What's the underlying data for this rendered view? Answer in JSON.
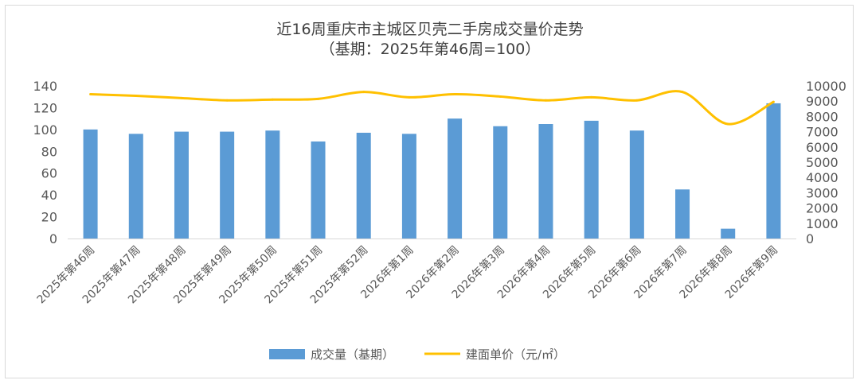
{
  "chart_data": {
    "type": "bar+line",
    "title": "近16周重庆市主城区贝壳二手房成交量价走势",
    "subtitle": "（基期：2025年第46周=100）",
    "categories": [
      "2025年第46周",
      "2025年第47周",
      "2025年第48周",
      "2025年第49周",
      "2025年第50周",
      "2025年第51周",
      "2025年第52周",
      "2026年第1周",
      "2026年第2周",
      "2026年第3周",
      "2026年第4周",
      "2026年第5周",
      "2026年第6周",
      "2026年第7周",
      "2026年第8周",
      "2026年第9周"
    ],
    "series": [
      {
        "name": "成交量（基期）",
        "type": "bar",
        "axis": "left",
        "color": "#5b9bd5",
        "values": [
          100,
          96,
          98,
          98,
          99,
          89,
          97,
          96,
          110,
          103,
          105,
          108,
          99,
          45,
          9,
          124
        ]
      },
      {
        "name": "建面单价（元/㎡）",
        "type": "line",
        "axis": "right",
        "color": "#ffc000",
        "values": [
          9450,
          9350,
          9200,
          9050,
          9100,
          9150,
          9600,
          9250,
          9450,
          9300,
          9050,
          9250,
          9050,
          9600,
          7500,
          8950
        ]
      }
    ],
    "y_left": {
      "min": 0,
      "max": 140,
      "step": 20,
      "ticks": [
        "0",
        "20",
        "40",
        "60",
        "80",
        "100",
        "120",
        "140"
      ]
    },
    "y_right": {
      "min": 0,
      "max": 10000,
      "step": 1000,
      "ticks": [
        "0",
        "1000",
        "2000",
        "3000",
        "4000",
        "5000",
        "6000",
        "7000",
        "8000",
        "9000",
        "10000"
      ]
    },
    "legend": [
      {
        "label": "成交量（基期）",
        "type": "bar",
        "color": "#5b9bd5"
      },
      {
        "label": "建面单价（元/㎡）",
        "type": "line",
        "color": "#ffc000"
      }
    ],
    "legend_position": "bottom",
    "grid": false
  }
}
